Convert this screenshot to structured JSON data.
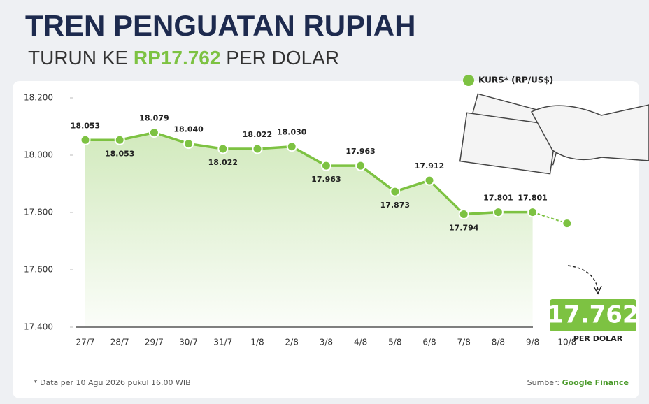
{
  "chart_data": {
    "type": "line",
    "title": "TREN PENGUATAN RUPIAH",
    "subtitle": [
      "TURUN KE ",
      "RP17.762",
      " PER DOLAR"
    ],
    "categories": [
      "27/7",
      "28/7",
      "29/7",
      "30/7",
      "31/7",
      "1/8",
      "2/8",
      "3/8",
      "4/8",
      "5/8",
      "6/8",
      "7/8",
      "8/8",
      "9/8",
      "10/8"
    ],
    "series": [
      {
        "name": "KURS* (RP/US$)",
        "color": "#7dc242",
        "values": [
          18053,
          18053,
          18079,
          18040,
          18022,
          18022,
          18030,
          17963,
          17963,
          17873,
          17912,
          17794,
          17801,
          17801,
          17762
        ],
        "value_labels": [
          "18.053",
          "18.053",
          "18.079",
          "18.040",
          "18.022",
          "18.022",
          "18.030",
          "17.963",
          "17.963",
          "17.873",
          "17.912",
          "17.794",
          "17.801",
          "17.801",
          "17.762"
        ]
      }
    ],
    "last_unit": "PER DOLAR",
    "ylim": [
      17400,
      18200
    ],
    "yticks": [
      {
        "value": 17400,
        "label": "17.400"
      },
      {
        "value": 17600,
        "label": "17.600"
      },
      {
        "value": 17800,
        "label": "17.800"
      },
      {
        "value": 18000,
        "label": "18.000"
      },
      {
        "value": 18200,
        "label": "18.200"
      }
    ],
    "footnote": "* Data per 10 Agu 2026 pukul 16.00 WIB",
    "source": [
      "Sumber: ",
      "Google Finance"
    ]
  }
}
